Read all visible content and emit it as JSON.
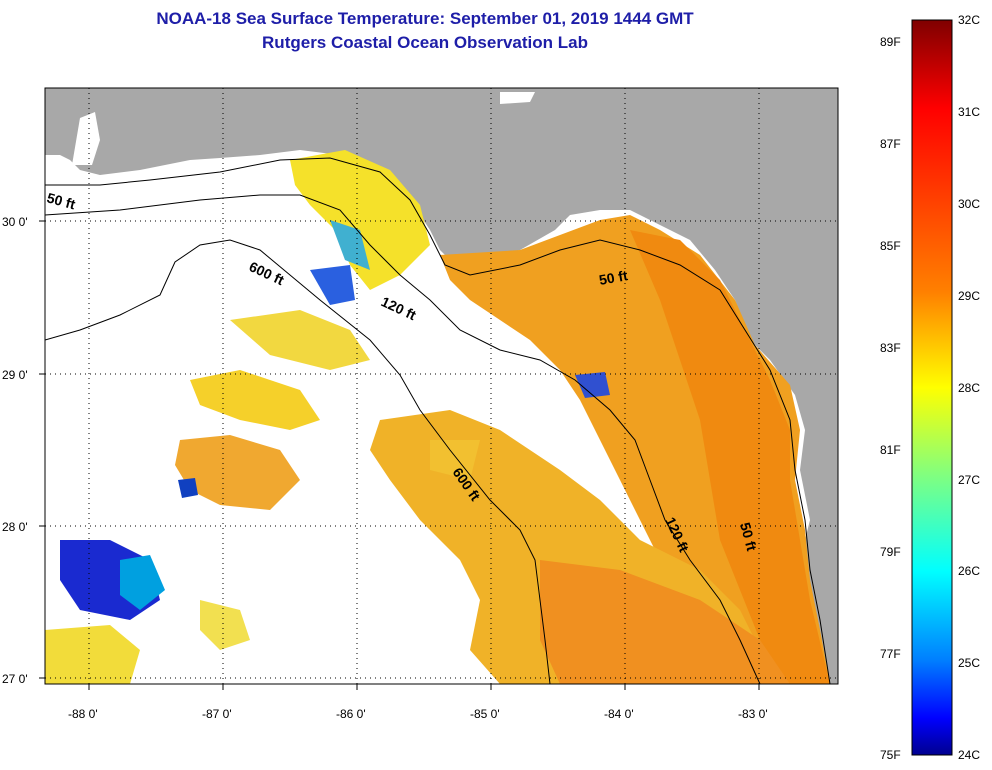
{
  "title": {
    "line1": "NOAA-18 Sea Surface Temperature:  September 01, 2019 1444 GMT",
    "line2": "Rutgers Coastal Ocean Observation Lab"
  },
  "map": {
    "lon_labels": [
      "-88 0'",
      "-87 0'",
      "-86 0'",
      "-85 0'",
      "-84 0'",
      "-83 0'"
    ],
    "lat_labels": [
      "30 0'",
      "29 0'",
      "28 0'",
      "27 0'"
    ],
    "contours": [
      {
        "label": "50 ft"
      },
      {
        "label": "600 ft"
      },
      {
        "label": "120 ft"
      },
      {
        "label": "50 ft"
      },
      {
        "label": "600 ft"
      },
      {
        "label": "120 ft"
      },
      {
        "label": "50 ft"
      }
    ],
    "colors": {
      "land": "#a8a8a8",
      "ocean_nodata": "#ffffff",
      "grid": "#000000"
    }
  },
  "colorbar": {
    "celsius": [
      "32C",
      "31C",
      "30C",
      "29C",
      "28C",
      "27C",
      "26C",
      "25C",
      "24C"
    ],
    "fahrenheit": [
      "89F",
      "87F",
      "85F",
      "83F",
      "81F",
      "79F",
      "77F",
      "75F"
    ],
    "stops": [
      "#7f0000",
      "#ff0000",
      "#ff8000",
      "#ffff00",
      "#80ff80",
      "#00ffff",
      "#0080ff",
      "#0000ff",
      "#00008f"
    ]
  }
}
